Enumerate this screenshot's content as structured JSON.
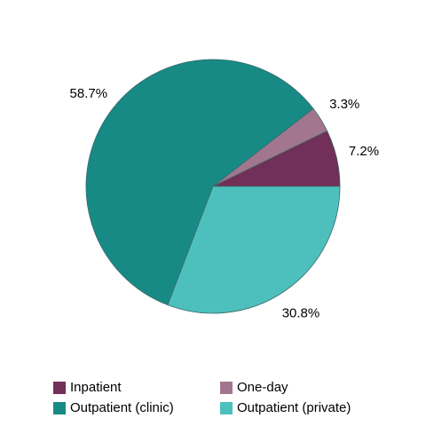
{
  "chart_data": {
    "type": "pie",
    "categories": [
      "Inpatient",
      "One-day",
      "Outpatient (clinic)",
      "Outpatient (private)"
    ],
    "values": [
      7.2,
      3.3,
      58.7,
      30.8
    ],
    "value_labels": [
      "7.2%",
      "3.3%",
      "58.7%",
      "30.8%"
    ],
    "colors": [
      "#722f57",
      "#a2768e",
      "#178a85",
      "#4dc0bd"
    ],
    "legend": "bottom"
  }
}
